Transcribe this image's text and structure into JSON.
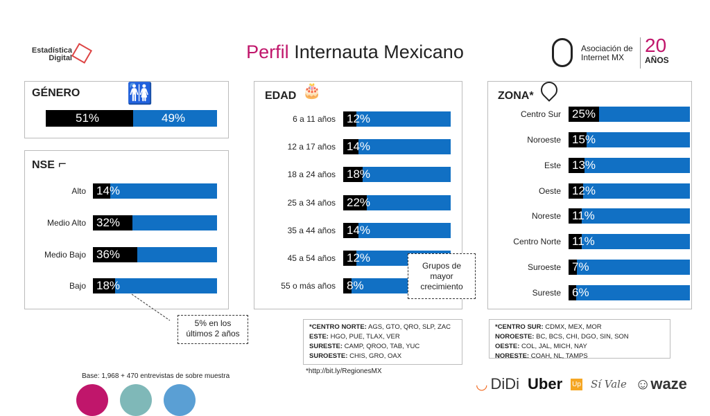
{
  "header": {
    "logo_left": "Estadística Digital",
    "title_accent": "Perfil",
    "title_rest": "Internauta Mexicano",
    "logo_right": "Asociación de Internet MX",
    "anniversary_num": "20",
    "anniversary_word": "AÑOS"
  },
  "genero": {
    "title": "GÉNERO",
    "male": 51,
    "male_label": "51%",
    "female_label": "49%"
  },
  "nse": {
    "title": "NSE",
    "rows": [
      {
        "label": "Alto",
        "value": 14,
        "text": "14%"
      },
      {
        "label": "Medio Alto",
        "value": 32,
        "text": "32%"
      },
      {
        "label": "Medio Bajo",
        "value": 36,
        "text": "36%"
      },
      {
        "label": "Bajo",
        "value": 18,
        "text": "18%"
      }
    ],
    "callout": "5% en los últimos 2 años"
  },
  "edad": {
    "title": "EDAD",
    "rows": [
      {
        "label": "6 a 11 años",
        "value": 12,
        "text": "12%"
      },
      {
        "label": "12 a 17 años",
        "value": 14,
        "text": "14%"
      },
      {
        "label": "18 a 24 años",
        "value": 18,
        "text": "18%"
      },
      {
        "label": "25 a 34 años",
        "value": 22,
        "text": "22%"
      },
      {
        "label": "35 a 44 años",
        "value": 14,
        "text": "14%"
      },
      {
        "label": "45 a 54 años",
        "value": 12,
        "text": "12%"
      },
      {
        "label": "55 o más años",
        "value": 8,
        "text": "8%"
      }
    ],
    "callout": "Grupos de mayor crecimiento"
  },
  "zona": {
    "title": "ZONA*",
    "rows": [
      {
        "label": "Centro Sur",
        "value": 25,
        "text": "25%"
      },
      {
        "label": "Noroeste",
        "value": 15,
        "text": "15%"
      },
      {
        "label": "Este",
        "value": 13,
        "text": "13%"
      },
      {
        "label": "Oeste",
        "value": 12,
        "text": "12%"
      },
      {
        "label": "Noreste",
        "value": 11,
        "text": "11%"
      },
      {
        "label": "Centro Norte",
        "value": 11,
        "text": "11%"
      },
      {
        "label": "Suroeste",
        "value": 7,
        "text": "7%"
      },
      {
        "label": "Sureste",
        "value": 6,
        "text": "6%"
      }
    ]
  },
  "footnotes": {
    "left": [
      {
        "k": "*CENTRO NORTE:",
        "v": " AGS, GTO, QRO, SLP, ZAC"
      },
      {
        "k": "ESTE:",
        "v": " HGO, PUE, TLAX, VER"
      },
      {
        "k": "SURESTE:",
        "v": " CAMP, QROO, TAB, YUC"
      },
      {
        "k": "SUROESTE:",
        "v": " CHIS, GRO, OAX"
      }
    ],
    "right": [
      {
        "k": "*CENTRO SUR:",
        "v": " CDMX, MEX, MOR"
      },
      {
        "k": "NOROESTE:",
        "v": " BC, BCS, CHI, DGO, SIN, SON"
      },
      {
        "k": "OESTE:",
        "v": " COL, JAL, MICH, NAY"
      },
      {
        "k": "NORESTE:",
        "v": " COAH, NL, TAMPS"
      }
    ],
    "link": "*http://bit.ly/RegionesMX",
    "base": "Base: 1,968 + 470 entrevistas de sobre muestra"
  },
  "sponsors": [
    "DiDi",
    "Uber",
    "Up",
    "Sí Vale",
    "waze"
  ],
  "colors": {
    "accent": "#c0166b",
    "bar": "#1170c4",
    "fill": "#000000",
    "circles": [
      "#c0166b",
      "#7fb8b8",
      "#5a9fd4"
    ]
  }
}
